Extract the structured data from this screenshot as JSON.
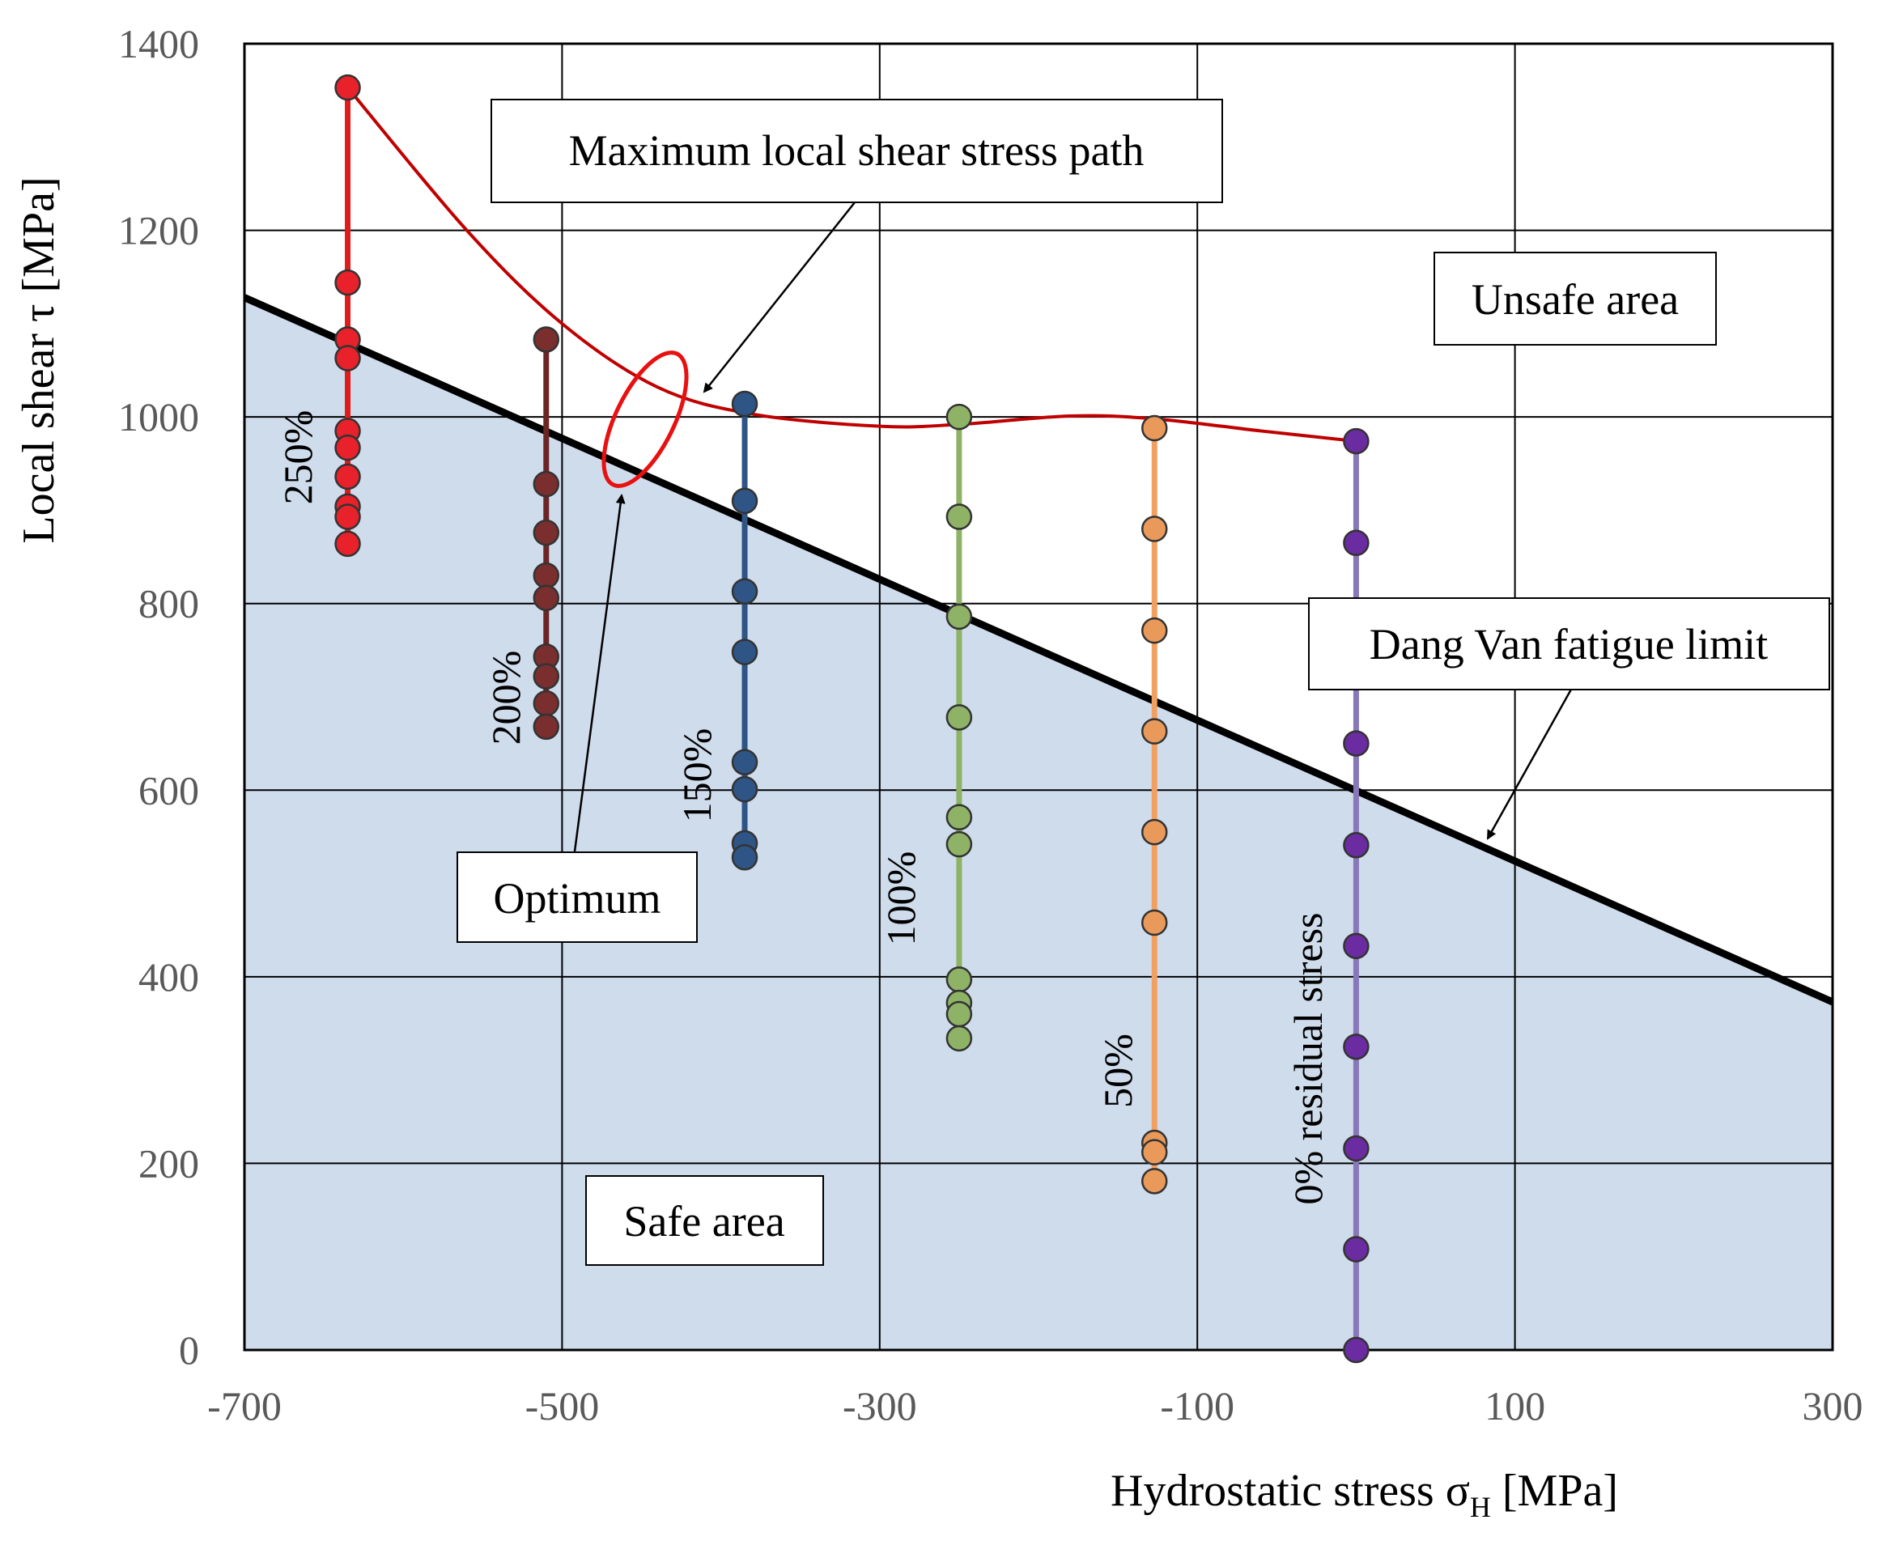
{
  "chart_data": {
    "type": "scatter",
    "xlabel": "Hydrostatic stress σ",
    "xlabel_sub": "H",
    "xlabel_unit": "[MPa]",
    "ylabel": "Local shear τ [MPa]",
    "xlim": [
      -700,
      300
    ],
    "ylim": [
      0,
      1400
    ],
    "x_ticks": [
      -700,
      -500,
      -300,
      -100,
      100,
      300
    ],
    "y_ticks": [
      0,
      200,
      400,
      600,
      800,
      1000,
      1200,
      1400
    ],
    "x_tick_labels": [
      "-700",
      "-500",
      "-300",
      "-100",
      "100",
      "300"
    ],
    "y_tick_labels": [
      "0",
      "200",
      "400",
      "600",
      "800",
      "1000",
      "1200",
      "1400"
    ],
    "grid": true,
    "series": [
      {
        "name": "250%",
        "x": -635,
        "color": "#e8212a",
        "line_color": "#e01b1b",
        "values": [
          1353,
          1144,
          1083,
          1063,
          985,
          967,
          936,
          904,
          893,
          864
        ]
      },
      {
        "name": "200%",
        "x": -510,
        "color": "#7a2e2e",
        "line_color": "#6b2525",
        "values": [
          1083,
          928,
          876,
          830,
          806,
          743,
          722,
          693,
          668
        ]
      },
      {
        "name": "150%",
        "x": -385,
        "color": "#2e5585",
        "line_color": "#2e5585",
        "values": [
          1014,
          910,
          813,
          748,
          630,
          601,
          543,
          528
        ]
      },
      {
        "name": "100%",
        "x": -250,
        "color": "#8fb366",
        "line_color": "#8fb366",
        "values": [
          1000,
          893,
          786,
          678,
          571,
          542,
          397,
          372,
          360,
          334
        ]
      },
      {
        "name": "50%",
        "x": -127,
        "color": "#e99a5b",
        "line_color": "#f2a05f",
        "values": [
          988,
          880,
          771,
          663,
          555,
          458,
          222,
          212,
          181
        ]
      },
      {
        "name": "0% residual stress",
        "x": 0,
        "color": "#6a2ca0",
        "line_color": "#8878b8",
        "values": [
          974,
          865,
          650,
          541,
          433,
          325,
          216,
          108,
          0
        ]
      }
    ],
    "dang_van_limit": {
      "x": [
        -700,
        300
      ],
      "y": [
        1128,
        373
      ]
    },
    "max_shear_path": {
      "x": [
        -635,
        -560,
        -500,
        -440,
        -380,
        -300,
        -250,
        -180,
        -127,
        -60,
        0
      ],
      "y": [
        1353,
        1200,
        1100,
        1032,
        1003,
        990,
        992,
        1001,
        998,
        985,
        974
      ]
    },
    "optimum": {
      "x": -465,
      "y": 995
    }
  },
  "annotations": {
    "max_path": "Maximum local shear stress path",
    "unsafe": "Unsafe area",
    "dang_van": "Dang Van fatigue limit",
    "optimum": "Optimum",
    "safe": "Safe area"
  },
  "colors": {
    "safe_fill": "#cfdcec",
    "limit_line": "#000000",
    "path_line": "#c00000",
    "optimum_ellipse": "#e81010"
  }
}
